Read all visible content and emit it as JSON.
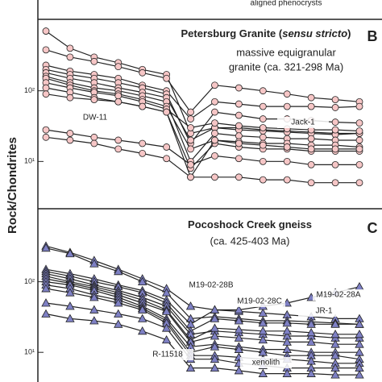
{
  "fragment_text": "aligned phenocrysts",
  "y_axis_label": "Rock/Chondrites",
  "chart_data": [
    {
      "type": "line",
      "panel_letter": "B",
      "title_parts": [
        "Petersburg Granite (",
        "sensu stricto",
        ")"
      ],
      "subtitle_lines": [
        "massive equigranular",
        "granite (ca. 321-298 Ma)"
      ],
      "annotations": [
        "DW-11",
        "Jack-1"
      ],
      "marker": "circle",
      "color": "#f6c6c6",
      "log_y": true,
      "categories": [
        null,
        null,
        null,
        null,
        null,
        null,
        null,
        null,
        null,
        null,
        null,
        null,
        null,
        null
      ],
      "ylim": [
        2.2,
        1000
      ],
      "yticks": [
        {
          "value": 10,
          "label": "10¹"
        },
        {
          "value": 100,
          "label": "10²"
        }
      ],
      "series": [
        {
          "values": [
            700,
            400,
            300,
            250,
            200,
            170,
            25,
            30,
            30,
            28,
            27,
            26,
            25,
            25
          ]
        },
        {
          "values": [
            380,
            300,
            260,
            220,
            180,
            150,
            50,
            120,
            110,
            100,
            90,
            80,
            75,
            70
          ]
        },
        {
          "values": [
            230,
            190,
            170,
            150,
            120,
            100,
            40,
            70,
            65,
            60,
            60,
            60,
            58,
            60
          ]
        },
        {
          "values": [
            200,
            170,
            150,
            130,
            110,
            90,
            18,
            50,
            45,
            40,
            40,
            38,
            36,
            35
          ]
        },
        {
          "values": [
            180,
            150,
            130,
            110,
            95,
            80,
            20,
            30,
            28,
            27,
            26,
            25,
            24,
            25
          ]
        },
        {
          "values": [
            160,
            130,
            110,
            100,
            85,
            70,
            10,
            25,
            23,
            22,
            21,
            21,
            20,
            20
          ]
        },
        {
          "values": [
            150,
            120,
            100,
            90,
            75,
            60,
            15,
            20,
            19,
            18,
            18,
            17,
            17,
            16
          ]
        },
        {
          "values": [
            130,
            110,
            95,
            85,
            70,
            55,
            30,
            35,
            32,
            30,
            29,
            28,
            28,
            27
          ]
        },
        {
          "values": [
            110,
            95,
            80,
            70,
            60,
            50,
            8,
            18,
            16,
            15,
            15,
            14,
            14,
            14
          ]
        },
        {
          "values": [
            90,
            80,
            75,
            70,
            60,
            50,
            6,
            20,
            18,
            17,
            16,
            15,
            15,
            15
          ]
        },
        {
          "values": [
            28,
            25,
            22,
            20,
            18,
            16,
            9,
            12,
            11,
            10,
            10,
            9,
            9,
            9
          ]
        },
        {
          "values": [
            22,
            20,
            18,
            15,
            13,
            11,
            6,
            6,
            6,
            5.5,
            5.5,
            5,
            5,
            5
          ]
        }
      ]
    },
    {
      "type": "line",
      "panel_letter": "C",
      "title_parts": [
        "Pocoshock Creek gneiss"
      ],
      "subtitle_lines": [
        "(ca. 425-403 Ma)"
      ],
      "annotations": [
        "M19-02-28B",
        "M19-02-28C",
        "M19-02-28A",
        "JR-1",
        "R-11518",
        "xenolith"
      ],
      "marker": "triangle",
      "color": "#7e80c4",
      "log_y": true,
      "categories": [
        null,
        null,
        null,
        null,
        null,
        null,
        null,
        null,
        null,
        null,
        null,
        null,
        null,
        null
      ],
      "ylim": [
        3.8,
        1000
      ],
      "yticks": [
        {
          "value": 10,
          "label": "10¹"
        },
        {
          "value": 100,
          "label": "10²"
        }
      ],
      "series": [
        {
          "values": [
            320,
            260,
            200,
            150,
            110,
            80,
            45,
            40,
            38,
            36,
            34,
            32,
            30,
            30
          ]
        },
        {
          "values": [
            300,
            250,
            180,
            140,
            100,
            70,
            30,
            32,
            30,
            28,
            28,
            27,
            26,
            25
          ]
        },
        {
          "values": [
            150,
            130,
            110,
            90,
            75,
            55,
            25,
            40,
            40,
            45,
            50,
            60,
            70,
            85
          ]
        },
        {
          "values": [
            140,
            120,
            100,
            85,
            70,
            50,
            20,
            30,
            28,
            26,
            26,
            25,
            25,
            25
          ]
        },
        {
          "values": [
            130,
            110,
            90,
            75,
            60,
            45,
            18,
            20,
            19,
            18,
            17,
            17,
            16,
            16
          ]
        },
        {
          "values": [
            120,
            100,
            85,
            70,
            55,
            40,
            15,
            22,
            21,
            20,
            20,
            19,
            18,
            18
          ]
        },
        {
          "values": [
            110,
            95,
            80,
            65,
            50,
            38,
            14,
            17,
            16,
            15,
            14,
            14,
            13,
            13
          ]
        },
        {
          "values": [
            100,
            90,
            75,
            60,
            45,
            30,
            12,
            13,
            12,
            11,
            11,
            10,
            10,
            10
          ]
        },
        {
          "values": [
            90,
            80,
            65,
            55,
            42,
            28,
            10,
            12,
            11,
            10,
            9,
            9,
            9,
            8
          ]
        },
        {
          "values": [
            80,
            70,
            60,
            50,
            40,
            26,
            9,
            9,
            8.5,
            8,
            8,
            7.5,
            7,
            7
          ]
        },
        {
          "values": [
            50,
            45,
            40,
            35,
            30,
            22,
            8,
            8,
            7,
            6.5,
            6,
            6,
            6,
            6
          ]
        },
        {
          "values": [
            35,
            30,
            28,
            25,
            20,
            15,
            6,
            6,
            5.5,
            5,
            5,
            5,
            4.8,
            4.8
          ]
        }
      ]
    }
  ]
}
